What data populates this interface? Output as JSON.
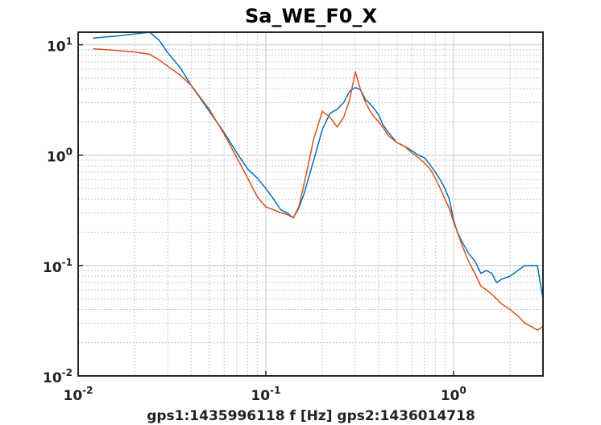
{
  "chart_data": {
    "type": "line",
    "title": "Sa_WE_F0_X",
    "xlabel": "gps1:1435996118  f [Hz]  gps2:1436014718",
    "ylabel": "",
    "xscale": "log",
    "yscale": "log",
    "xlim": [
      0.01,
      3.0
    ],
    "ylim": [
      0.01,
      13
    ],
    "grid": true,
    "x_ticks": [
      {
        "base": "10",
        "exp": "-2",
        "value": 0.01
      },
      {
        "base": "10",
        "exp": "-1",
        "value": 0.1
      },
      {
        "base": "10",
        "exp": "0",
        "value": 1
      }
    ],
    "y_ticks": [
      {
        "base": "10",
        "exp": "-2",
        "value": 0.01
      },
      {
        "base": "10",
        "exp": "-1",
        "value": 0.1
      },
      {
        "base": "10",
        "exp": "0",
        "value": 1
      },
      {
        "base": "10",
        "exp": "1",
        "value": 10
      }
    ],
    "series": [
      {
        "color": "#0072bd",
        "x": [
          0.012,
          0.016,
          0.02,
          0.024,
          0.027,
          0.03,
          0.035,
          0.04,
          0.05,
          0.06,
          0.07,
          0.08,
          0.09,
          0.1,
          0.11,
          0.12,
          0.13,
          0.14,
          0.15,
          0.16,
          0.18,
          0.2,
          0.22,
          0.24,
          0.26,
          0.28,
          0.3,
          0.32,
          0.34,
          0.36,
          0.38,
          0.4,
          0.42,
          0.45,
          0.5,
          0.55,
          0.6,
          0.65,
          0.7,
          0.75,
          0.8,
          0.85,
          0.9,
          0.95,
          1.0,
          1.05,
          1.1,
          1.2,
          1.3,
          1.4,
          1.5,
          1.6,
          1.7,
          1.8,
          2.0,
          2.2,
          2.4,
          2.6,
          2.8,
          3.0
        ],
        "y": [
          11.5,
          12.0,
          12.5,
          13.0,
          11.0,
          8.5,
          6.2,
          4.3,
          2.5,
          1.6,
          1.05,
          0.75,
          0.62,
          0.5,
          0.4,
          0.32,
          0.3,
          0.27,
          0.33,
          0.45,
          0.9,
          1.7,
          2.4,
          2.6,
          3.0,
          3.8,
          4.1,
          3.9,
          3.2,
          2.9,
          2.6,
          2.3,
          1.9,
          1.6,
          1.3,
          1.2,
          1.1,
          1.0,
          0.95,
          0.82,
          0.7,
          0.6,
          0.5,
          0.4,
          0.26,
          0.2,
          0.17,
          0.13,
          0.11,
          0.085,
          0.09,
          0.085,
          0.07,
          0.075,
          0.08,
          0.09,
          0.1,
          0.1,
          0.1,
          0.05
        ]
      },
      {
        "color": "#d95319",
        "x": [
          0.012,
          0.016,
          0.02,
          0.024,
          0.027,
          0.03,
          0.035,
          0.04,
          0.05,
          0.06,
          0.07,
          0.08,
          0.09,
          0.1,
          0.11,
          0.12,
          0.13,
          0.14,
          0.15,
          0.16,
          0.18,
          0.2,
          0.22,
          0.24,
          0.26,
          0.28,
          0.3,
          0.32,
          0.34,
          0.36,
          0.38,
          0.4,
          0.42,
          0.45,
          0.5,
          0.55,
          0.6,
          0.65,
          0.7,
          0.75,
          0.8,
          0.85,
          0.9,
          0.95,
          1.0,
          1.05,
          1.1,
          1.2,
          1.3,
          1.4,
          1.5,
          1.6,
          1.7,
          1.8,
          2.0,
          2.2,
          2.4,
          2.6,
          2.8,
          3.0
        ],
        "y": [
          9.2,
          8.9,
          8.6,
          8.2,
          7.3,
          6.4,
          5.3,
          4.3,
          2.6,
          1.55,
          0.95,
          0.62,
          0.42,
          0.34,
          0.32,
          0.3,
          0.29,
          0.27,
          0.34,
          0.55,
          1.4,
          2.5,
          2.2,
          1.8,
          2.2,
          3.2,
          5.7,
          3.9,
          3.0,
          2.5,
          2.2,
          2.0,
          1.8,
          1.5,
          1.3,
          1.2,
          1.05,
          0.95,
          0.85,
          0.75,
          0.62,
          0.5,
          0.4,
          0.33,
          0.25,
          0.2,
          0.16,
          0.11,
          0.085,
          0.065,
          0.06,
          0.055,
          0.05,
          0.045,
          0.04,
          0.035,
          0.03,
          0.028,
          0.026,
          0.028
        ]
      }
    ]
  }
}
